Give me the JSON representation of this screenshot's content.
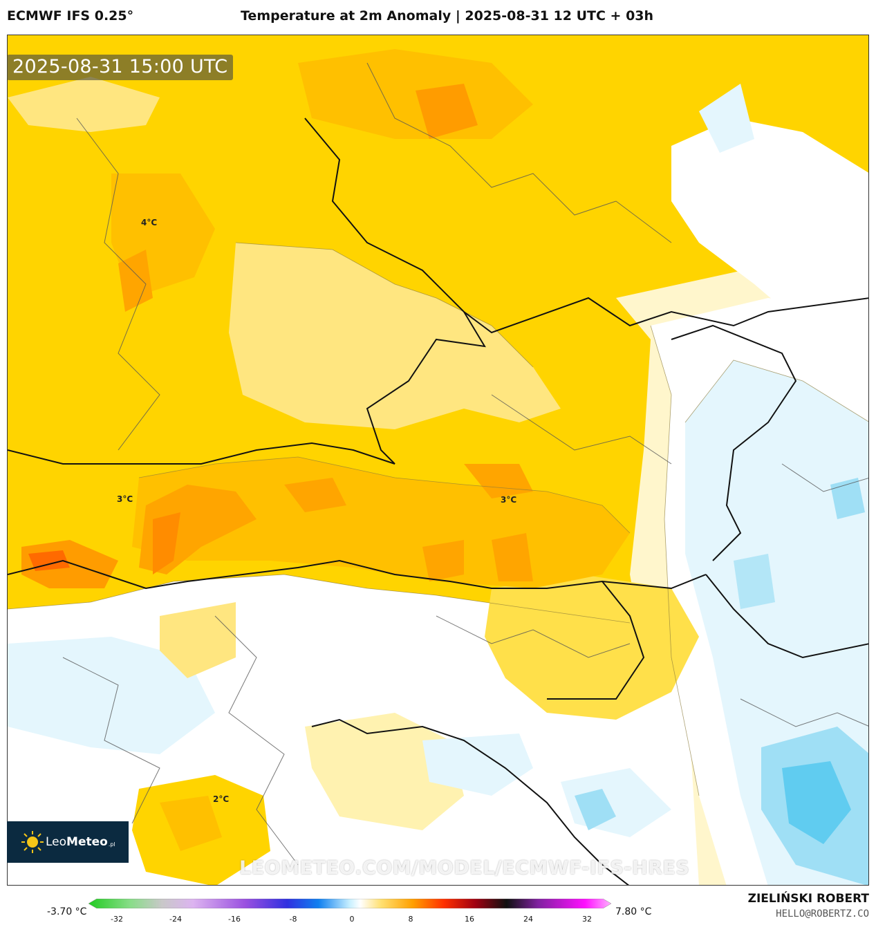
{
  "header": {
    "model": "ECMWF IFS 0.25°",
    "title": "Temperature at 2m Anomaly | 2025-08-31 12 UTC + 03h"
  },
  "map": {
    "valid_time": "2025-08-31 15:00 UTC",
    "contour_labels": [
      "4°C",
      "3°C",
      "3°C",
      "2°C"
    ],
    "watermark": "LEOMETEO.COM/MODEL/ECMWF-IFS-HRES",
    "colors": {
      "strong_warm": "#ff8c00",
      "warm": "#ffa500",
      "moderate": "#ffc400",
      "mild": "#ffe04a",
      "slight": "#fff2b0",
      "neutral": "#ffffff",
      "cool_light": "#e4f6fd",
      "cool": "#b3e6f7",
      "cold": "#60ccf0"
    }
  },
  "logo": {
    "brand_bold": "Leo",
    "brand_rest": "Meteo",
    "suffix": ".pl",
    "icon": "sun-icon"
  },
  "legend": {
    "min_label": "-3.70 °C",
    "max_label": "7.80 °C",
    "ticks": [
      "-32",
      "-24",
      "-16",
      "-8",
      "0",
      "8",
      "16",
      "24",
      "32"
    ]
  },
  "credits": {
    "author": "ZIELIŃSKI ROBERT",
    "email": "HELLO@ROBERTZ.CO"
  }
}
